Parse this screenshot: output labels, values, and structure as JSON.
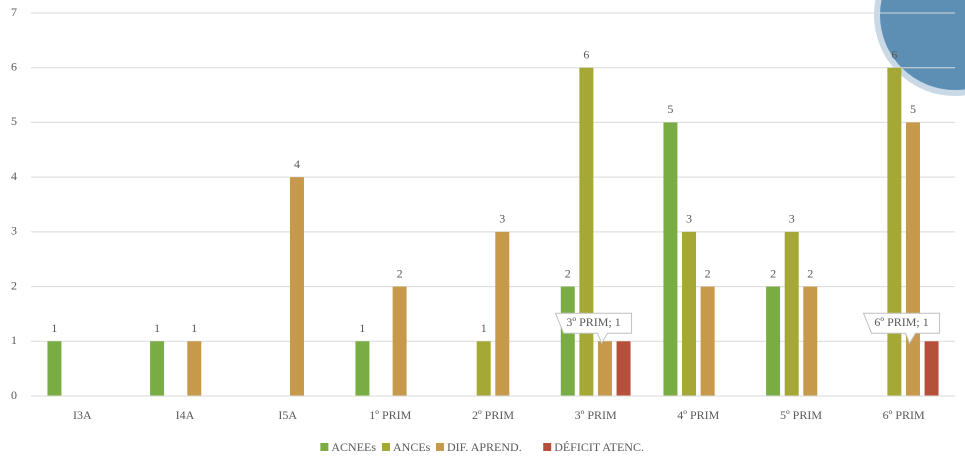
{
  "chart_data": {
    "type": "bar",
    "categories": [
      "I3A",
      "I4A",
      "I5A",
      "1º PRIM",
      "2º PRIM",
      "3º PRIM",
      "4º PRIM",
      "5º PRIM",
      "6º PRIM"
    ],
    "series": [
      {
        "name": "ACNEEs",
        "color": "#7aac44",
        "values": [
          1,
          1,
          null,
          1,
          null,
          2,
          5,
          2,
          null
        ]
      },
      {
        "name": "ANCEs",
        "color": "#a5a835",
        "values": [
          null,
          null,
          null,
          null,
          1,
          6,
          3,
          3,
          6
        ]
      },
      {
        "name": "DIF. APREND.",
        "color": "#c79a4b",
        "values": [
          null,
          1,
          4,
          2,
          3,
          1,
          2,
          2,
          5
        ]
      },
      {
        "name": "DÉFICIT ATENC.",
        "color": "#b5513a",
        "values": [
          null,
          null,
          null,
          null,
          null,
          1,
          null,
          null,
          1
        ],
        "value_labels": [
          null,
          null,
          null,
          null,
          null,
          "3º PRIM; 1",
          null,
          null,
          "6º PRIM; 1"
        ]
      }
    ],
    "ylim": [
      0,
      7
    ],
    "yticks": [
      0,
      1,
      2,
      3,
      4,
      5,
      6,
      7
    ],
    "grid": true,
    "legend": "bottom"
  }
}
